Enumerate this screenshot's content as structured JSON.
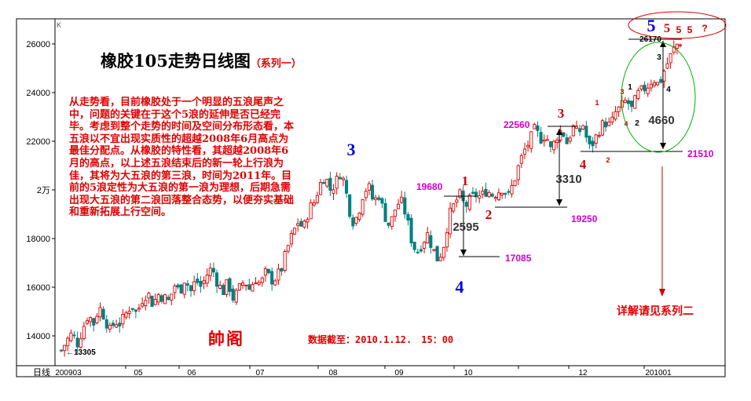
{
  "chart_data": {
    "type": "candlestick",
    "title": "橡胶105走势日线图",
    "subtitle": "（系列一）",
    "y_ticks": [
      "26000",
      "24000",
      "22000",
      "2万",
      "18000",
      "16000",
      "14000"
    ],
    "y_tick_values": [
      26000,
      24000,
      22000,
      20000,
      18000,
      16000,
      14000
    ],
    "ylim": [
      13000,
      27200
    ],
    "x_axis_label": "日线",
    "x_ticks": [
      "200903",
      "05",
      "06",
      "07",
      "08",
      "09",
      "10",
      "12",
      "201001"
    ],
    "corner_label": "K",
    "price_labels": {
      "high": "26170",
      "p22560": "22560",
      "p21510": "21510",
      "p19680": "19680",
      "p19250": "19250",
      "p17085": "17085",
      "low": "←13305"
    },
    "ranges": {
      "r2595": "2595",
      "r3310": "3310",
      "r4660": "4660"
    },
    "wave_labels": {
      "big3": "3",
      "big4": "4",
      "big5": "5",
      "w1": "1",
      "w2": "2",
      "w3": "3",
      "w4": "4",
      "s5": "5",
      "s5b": "5",
      "s5c": "5",
      "q": "?",
      "sub1": "1",
      "sub2": "2",
      "sub3": "3",
      "sub3b": "3",
      "sub4": "4",
      "sub1b": "1",
      "sub2b": "2",
      "sub4b": "4"
    },
    "note": "从走势看，目前橡胶处于一个明显的五浪尾声之中，问题的关键在于这个5浪的延伸是否已经完毕。考虑到整个走势的时间及空间分布形态看，本五浪以不宜出现实质性的超越2008年6月高点为最佳分配点。从橡胶的特性看，其超越2008年6月的高点，以上述五浪结束后的新一轮上行浪为佳，其将为大五浪的第三浪，时间为2011年。目前的5浪定性为大五浪的第一浪为理想，后期急需出现大五浪的第二浪回落整合态势，以便夯实基础和重新拓展上行空间。",
    "signature": "帥阁",
    "data_time": "数据截至：2010.1.12.　15：00",
    "see_more": "详解请见系列二",
    "colors": {
      "up": "#e00000",
      "down": "#008080",
      "label_magenta": "#cc00cc",
      "wave_blue": "#0000dd"
    },
    "close_path": [
      [
        0,
        13400
      ],
      [
        5,
        13800
      ],
      [
        10,
        14100
      ],
      [
        15,
        13700
      ],
      [
        20,
        14300
      ],
      [
        25,
        14900
      ],
      [
        30,
        14500
      ],
      [
        35,
        15200
      ],
      [
        40,
        14800
      ],
      [
        45,
        14200
      ],
      [
        50,
        14600
      ],
      [
        55,
        14500
      ],
      [
        60,
        14900
      ],
      [
        65,
        15300
      ],
      [
        70,
        14900
      ],
      [
        75,
        15500
      ],
      [
        80,
        15800
      ],
      [
        85,
        15300
      ],
      [
        90,
        15700
      ],
      [
        95,
        15600
      ],
      [
        100,
        15400
      ],
      [
        105,
        16100
      ],
      [
        110,
        15800
      ],
      [
        115,
        16400
      ],
      [
        120,
        15800
      ],
      [
        125,
        16300
      ],
      [
        130,
        16000
      ],
      [
        135,
        16500
      ],
      [
        140,
        16800
      ],
      [
        145,
        16200
      ],
      [
        150,
        15800
      ],
      [
        155,
        16200
      ],
      [
        160,
        15500
      ],
      [
        165,
        15900
      ],
      [
        170,
        16300
      ],
      [
        175,
        15900
      ],
      [
        180,
        16400
      ],
      [
        185,
        16100
      ],
      [
        190,
        16600
      ],
      [
        195,
        16300
      ],
      [
        200,
        16400
      ],
      [
        205,
        16800
      ],
      [
        210,
        17600
      ],
      [
        215,
        18200
      ],
      [
        220,
        18700
      ],
      [
        225,
        18400
      ],
      [
        230,
        19200
      ],
      [
        235,
        19500
      ],
      [
        240,
        20200
      ],
      [
        245,
        20600
      ],
      [
        250,
        20000
      ],
      [
        255,
        20300
      ],
      [
        260,
        20800
      ],
      [
        265,
        19800
      ],
      [
        270,
        18700
      ],
      [
        275,
        18900
      ],
      [
        280,
        19800
      ],
      [
        285,
        20200
      ],
      [
        290,
        19500
      ],
      [
        295,
        19800
      ],
      [
        300,
        19000
      ],
      [
        305,
        18500
      ],
      [
        310,
        19200
      ],
      [
        315,
        19600
      ],
      [
        320,
        19000
      ],
      [
        325,
        18000
      ],
      [
        330,
        17400
      ],
      [
        335,
        17800
      ],
      [
        340,
        18200
      ],
      [
        345,
        17600
      ],
      [
        350,
        17100
      ],
      [
        355,
        17700
      ],
      [
        360,
        18900
      ],
      [
        365,
        19400
      ],
      [
        370,
        19800
      ],
      [
        375,
        19300
      ],
      [
        380,
        19600
      ],
      [
        385,
        19800
      ],
      [
        390,
        19700
      ],
      [
        395,
        20000
      ],
      [
        400,
        19800
      ],
      [
        405,
        19900
      ],
      [
        410,
        20100
      ],
      [
        415,
        19700
      ],
      [
        420,
        20300
      ],
      [
        425,
        21000
      ],
      [
        430,
        21600
      ],
      [
        435,
        22000
      ],
      [
        440,
        22500
      ],
      [
        445,
        22100
      ],
      [
        450,
        22300
      ],
      [
        455,
        21600
      ],
      [
        460,
        22200
      ],
      [
        465,
        22500
      ],
      [
        470,
        21900
      ],
      [
        475,
        22600
      ],
      [
        480,
        22300
      ],
      [
        485,
        22700
      ],
      [
        490,
        21700
      ],
      [
        495,
        22000
      ],
      [
        500,
        22500
      ],
      [
        505,
        22800
      ],
      [
        510,
        22600
      ],
      [
        515,
        23200
      ],
      [
        520,
        23400
      ],
      [
        525,
        23700
      ],
      [
        530,
        23300
      ],
      [
        535,
        23900
      ],
      [
        540,
        24100
      ],
      [
        545,
        24300
      ],
      [
        550,
        24600
      ],
      [
        555,
        24300
      ],
      [
        560,
        24900
      ],
      [
        565,
        25400
      ],
      [
        570,
        25900
      ],
      [
        575,
        26100
      ]
    ]
  }
}
